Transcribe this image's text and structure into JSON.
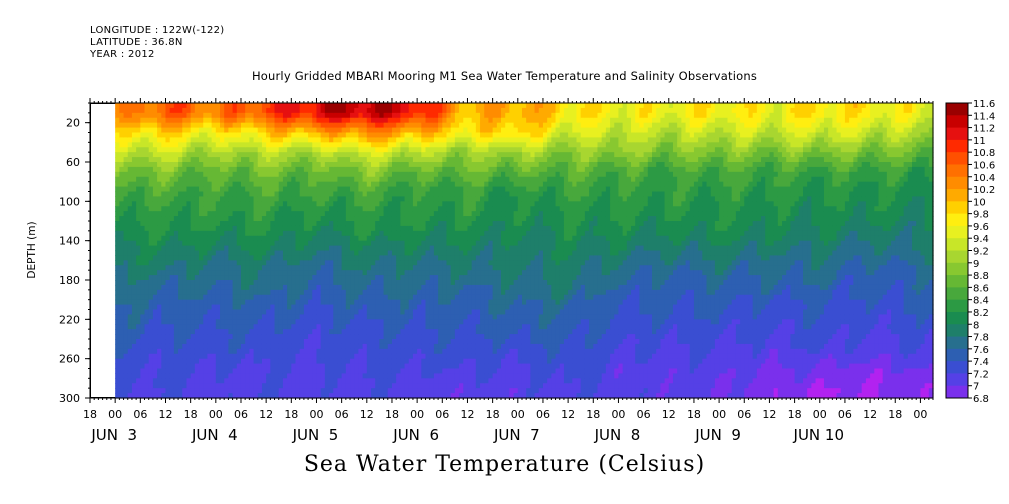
{
  "header": {
    "longitude": "LONGITUDE : 122W(-122)",
    "latitude": "LATITUDE : 36.8N",
    "year": "YEAR : 2012"
  },
  "title": "Hourly Gridded MBARI Mooring M1 Sea Water Temperature and Salinity Observations",
  "bottom_title": "Sea Water Temperature (Celsius)",
  "chart_data": {
    "type": "heatmap",
    "title": "Hourly Gridded MBARI Mooring M1 Sea Water Temperature and Salinity Observations",
    "ylabel": "DEPTH (m)",
    "xlabel": "",
    "y_reversed": true,
    "ylim": [
      0,
      300
    ],
    "y_ticks": [
      20,
      60,
      100,
      140,
      180,
      220,
      260,
      300
    ],
    "x_range_hours": [
      -6,
      195
    ],
    "data_start_hour": 0,
    "x_ticks_hours": [
      "18",
      "00",
      "06",
      "12",
      "18",
      "00",
      "06",
      "12",
      "18",
      "00",
      "06",
      "12",
      "18",
      "00",
      "06",
      "12",
      "18",
      "00",
      "06",
      "12",
      "18",
      "00",
      "06",
      "12",
      "18",
      "00",
      "06",
      "12",
      "18",
      "00",
      "06",
      "12",
      "18",
      "00",
      "06",
      "12"
    ],
    "date_labels": [
      {
        "text": "JUN  3",
        "hour": 0
      },
      {
        "text": "JUN  4",
        "hour": 24
      },
      {
        "text": "JUN  5",
        "hour": 48
      },
      {
        "text": "JUN  6",
        "hour": 72
      },
      {
        "text": "JUN  7",
        "hour": 96
      },
      {
        "text": "JUN  8",
        "hour": 120
      },
      {
        "text": "JUN  9",
        "hour": 144
      },
      {
        "text": "JUN 10",
        "hour": 168
      }
    ],
    "colorbar": {
      "levels": [
        "11.6",
        "11.4",
        "11.2",
        "11",
        "10.8",
        "10.6",
        "10.4",
        "10.2",
        "10",
        "9.8",
        "9.6",
        "9.4",
        "9.2",
        "9",
        "8.8",
        "8.6",
        "8.4",
        "8.2",
        "8",
        "7.8",
        "7.6",
        "7.4",
        "7.2",
        "7",
        "6.8"
      ],
      "colors": [
        "#9a0000",
        "#c80000",
        "#e61010",
        "#ff2a00",
        "#ff5000",
        "#ff7000",
        "#ff8c00",
        "#ffaa00",
        "#ffd000",
        "#ffee10",
        "#e8f020",
        "#c8e628",
        "#a8d630",
        "#88c830",
        "#66b834",
        "#48a83c",
        "#2c9a44",
        "#1a8c50",
        "#1e7f6a",
        "#276f8e",
        "#2d5fb2",
        "#3a4ed2",
        "#5540e6",
        "#7a30ec",
        "#b222f0"
      ]
    },
    "depth_levels": [
      10,
      30,
      50,
      70,
      90,
      110,
      130,
      150,
      170,
      190,
      210,
      230,
      250,
      270,
      290
    ],
    "time_anchor_hours": [
      0,
      12,
      24,
      36,
      48,
      60,
      72,
      84,
      96,
      108,
      120,
      132,
      144,
      156,
      168,
      180,
      192
    ],
    "temperature_grid": [
      [
        10.3,
        10.8,
        10.5,
        10.9,
        11.3,
        11.5,
        11.2,
        10.1,
        10.3,
        9.9,
        9.7,
        9.7,
        9.8,
        9.7,
        9.9,
        9.8,
        9.6
      ],
      [
        9.8,
        10.0,
        9.7,
        10.0,
        10.2,
        10.4,
        10.2,
        9.8,
        10.0,
        9.5,
        9.4,
        9.3,
        9.4,
        9.4,
        9.5,
        9.4,
        9.2
      ],
      [
        9.3,
        9.4,
        9.1,
        9.3,
        9.2,
        9.5,
        9.3,
        9.1,
        9.2,
        9.0,
        9.1,
        8.9,
        9.0,
        8.9,
        9.0,
        8.9,
        8.8
      ],
      [
        8.9,
        8.9,
        8.7,
        8.9,
        8.7,
        9.0,
        8.7,
        8.8,
        8.7,
        8.7,
        8.6,
        8.5,
        8.6,
        8.5,
        8.5,
        8.5,
        8.4
      ],
      [
        8.6,
        8.6,
        8.5,
        8.6,
        8.5,
        8.6,
        8.4,
        8.5,
        8.3,
        8.5,
        8.4,
        8.4,
        8.4,
        8.4,
        8.3,
        8.3,
        8.2
      ],
      [
        8.4,
        8.4,
        8.4,
        8.4,
        8.3,
        8.4,
        8.3,
        8.4,
        8.2,
        8.3,
        8.3,
        8.3,
        8.3,
        8.2,
        8.2,
        8.2,
        8.1
      ],
      [
        8.2,
        8.3,
        8.2,
        8.3,
        8.1,
        8.3,
        8.2,
        8.2,
        8.1,
        8.2,
        8.2,
        8.1,
        8.2,
        8.1,
        8.1,
        8.0,
        8.0
      ],
      [
        8.1,
        8.1,
        8.0,
        8.1,
        7.9,
        8.0,
        8.0,
        8.0,
        8.0,
        8.1,
        8.0,
        7.9,
        8.0,
        7.9,
        7.9,
        7.8,
        7.9
      ],
      [
        8.0,
        7.9,
        7.8,
        7.9,
        7.7,
        7.9,
        7.8,
        7.9,
        7.9,
        8.0,
        7.8,
        7.7,
        7.8,
        7.7,
        7.8,
        7.6,
        7.7
      ],
      [
        7.8,
        7.7,
        7.7,
        7.8,
        7.6,
        7.7,
        7.7,
        7.7,
        7.8,
        7.9,
        7.6,
        7.6,
        7.6,
        7.6,
        7.6,
        7.5,
        7.6
      ],
      [
        7.7,
        7.6,
        7.6,
        7.6,
        7.5,
        7.6,
        7.6,
        7.6,
        7.7,
        7.7,
        7.5,
        7.5,
        7.5,
        7.4,
        7.5,
        7.4,
        7.5
      ],
      [
        7.6,
        7.5,
        7.5,
        7.5,
        7.4,
        7.5,
        7.5,
        7.5,
        7.6,
        7.6,
        7.4,
        7.4,
        7.4,
        7.3,
        7.4,
        7.3,
        7.4
      ],
      [
        7.5,
        7.4,
        7.4,
        7.4,
        7.3,
        7.4,
        7.4,
        7.4,
        7.4,
        7.5,
        7.3,
        7.3,
        7.3,
        7.2,
        7.3,
        7.2,
        7.3
      ],
      [
        7.4,
        7.3,
        7.3,
        7.3,
        7.3,
        7.3,
        7.3,
        7.3,
        7.3,
        7.4,
        7.2,
        7.2,
        7.2,
        7.1,
        7.1,
        7.0,
        7.1
      ],
      [
        7.3,
        7.3,
        7.2,
        7.3,
        7.2,
        7.3,
        7.2,
        7.2,
        7.2,
        7.3,
        7.2,
        7.2,
        7.1,
        7.0,
        6.9,
        6.9,
        7.0
      ]
    ]
  }
}
